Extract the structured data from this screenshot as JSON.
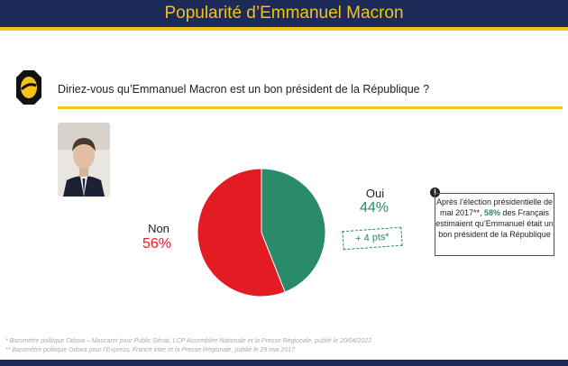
{
  "header": {
    "title": "Popularité d’Emmanuel Macron"
  },
  "question": "Diriez-vous qu’Emmanuel Macron est un bon président de la République ?",
  "colors": {
    "navy": "#1d2a57",
    "gold": "#f3c31b",
    "red": "#e31b23",
    "green": "#2a8a6a"
  },
  "chart_data": {
    "type": "pie",
    "categories": [
      "Oui",
      "Non"
    ],
    "values": [
      44,
      56
    ],
    "labels": [
      "44%",
      "56%"
    ],
    "colors": [
      "#2a8a6a",
      "#e31b23"
    ],
    "annotations": [
      "+ 4 pts*"
    ]
  },
  "legend": {
    "oui": {
      "name": "Oui",
      "pct": "44%"
    },
    "non": {
      "name": "Non",
      "pct": "56%"
    },
    "change": "+ 4 pts*"
  },
  "info": {
    "text_before": "Après l’élection présidentielle de mai 2017**, ",
    "highlight": "58%",
    "text_after": " des Français estimaient qu’Emmanuel était un bon président de la République"
  },
  "footnotes": [
    "* Baromètre politique Odoxa – Mascaret pour Public Sénat, LCP Assemblée Nationale et la Presse Régionale, publié le 20/04/2022",
    "** Baromètre politique Odoxa pour l’Express, France inter et la Presse Régionale, publié le 29 mai 2017"
  ]
}
